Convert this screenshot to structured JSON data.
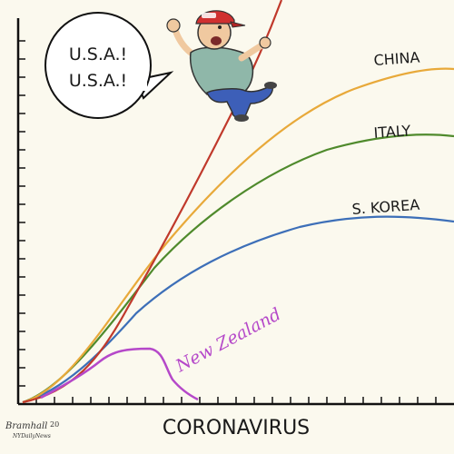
{
  "speech": {
    "line1": "U.S.A.!",
    "line2": "U.S.A.!"
  },
  "series_labels": {
    "china": "CHINA",
    "italy": "ITALY",
    "korea": "S. KOREA",
    "nz": "New Zealand"
  },
  "xlabel": "CORONAVIRUS",
  "signature": {
    "name": "Bramhall",
    "year": "20",
    "outlet": "NYDailyNews"
  },
  "colors": {
    "usa": "#c0392b",
    "china": "#e8a93a",
    "italy": "#4f8a2c",
    "korea": "#3d6fb8",
    "nz": "#b548c9",
    "axis": "#111111",
    "shirt": "#8fb7a9",
    "jeans": "#3d5fb8",
    "cap": "#d03030",
    "skin": "#f0c9a0"
  },
  "icons": [
    "man-climbing-line",
    "speech-bubble"
  ]
}
